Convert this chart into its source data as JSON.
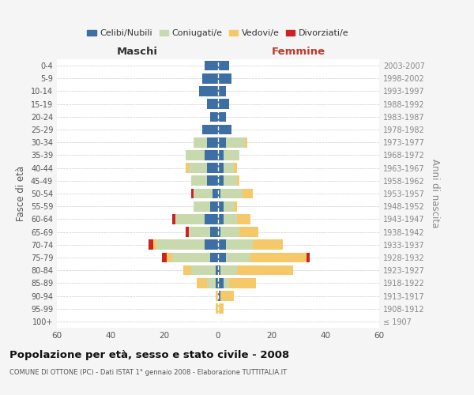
{
  "age_groups": [
    "100+",
    "95-99",
    "90-94",
    "85-89",
    "80-84",
    "75-79",
    "70-74",
    "65-69",
    "60-64",
    "55-59",
    "50-54",
    "45-49",
    "40-44",
    "35-39",
    "30-34",
    "25-29",
    "20-24",
    "15-19",
    "10-14",
    "5-9",
    "0-4"
  ],
  "birth_years": [
    "≤ 1907",
    "1908-1912",
    "1913-1917",
    "1918-1922",
    "1923-1927",
    "1928-1932",
    "1933-1937",
    "1938-1942",
    "1943-1947",
    "1948-1952",
    "1953-1957",
    "1958-1962",
    "1963-1967",
    "1968-1972",
    "1973-1977",
    "1978-1982",
    "1983-1987",
    "1988-1992",
    "1993-1997",
    "1998-2002",
    "2003-2007"
  ],
  "maschi": {
    "celibi": [
      0,
      0,
      0,
      1,
      1,
      3,
      5,
      3,
      5,
      3,
      2,
      4,
      4,
      5,
      4,
      6,
      3,
      4,
      7,
      6,
      5
    ],
    "coniugati": [
      0,
      0,
      0,
      3,
      9,
      14,
      18,
      8,
      11,
      6,
      7,
      6,
      7,
      7,
      5,
      0,
      0,
      0,
      0,
      0,
      0
    ],
    "vedovi": [
      0,
      1,
      1,
      4,
      3,
      2,
      1,
      0,
      0,
      0,
      0,
      0,
      1,
      0,
      0,
      0,
      0,
      0,
      0,
      0,
      0
    ],
    "divorziati": [
      0,
      0,
      0,
      0,
      0,
      2,
      2,
      1,
      1,
      0,
      1,
      0,
      0,
      0,
      0,
      0,
      0,
      0,
      0,
      0,
      0
    ]
  },
  "femmine": {
    "nubili": [
      0,
      0,
      1,
      2,
      1,
      3,
      3,
      1,
      2,
      2,
      1,
      2,
      2,
      2,
      3,
      5,
      3,
      4,
      3,
      5,
      4
    ],
    "coniugate": [
      0,
      0,
      0,
      2,
      6,
      9,
      10,
      7,
      5,
      4,
      8,
      5,
      4,
      6,
      7,
      0,
      0,
      0,
      0,
      0,
      0
    ],
    "vedove": [
      0,
      2,
      5,
      10,
      21,
      21,
      11,
      7,
      5,
      1,
      4,
      1,
      1,
      0,
      1,
      0,
      0,
      0,
      0,
      0,
      0
    ],
    "divorziate": [
      0,
      0,
      0,
      0,
      0,
      1,
      0,
      0,
      0,
      0,
      0,
      0,
      0,
      0,
      0,
      0,
      0,
      0,
      0,
      0,
      0
    ]
  },
  "colors": {
    "celibi": "#3d6fa5",
    "coniugati": "#c8d9ae",
    "vedovi": "#f5c96a",
    "divorziati": "#cc2222"
  },
  "xlim": 60,
  "title": "Popolazione per età, sesso e stato civile - 2008",
  "subtitle": "COMUNE DI OTTONE (PC) - Dati ISTAT 1° gennaio 2008 - Elaborazione TUTTITALIA.IT",
  "ylabel_left": "Fasce di età",
  "ylabel_right": "Anni di nascita",
  "legend_labels": [
    "Celibi/Nubili",
    "Coniugati/e",
    "Vedovi/e",
    "Divorziati/e"
  ],
  "maschi_label": "Maschi",
  "femmine_label": "Femmine",
  "bg_color": "#f5f5f5",
  "plot_bg": "#ffffff",
  "grid_color": "#cccccc"
}
